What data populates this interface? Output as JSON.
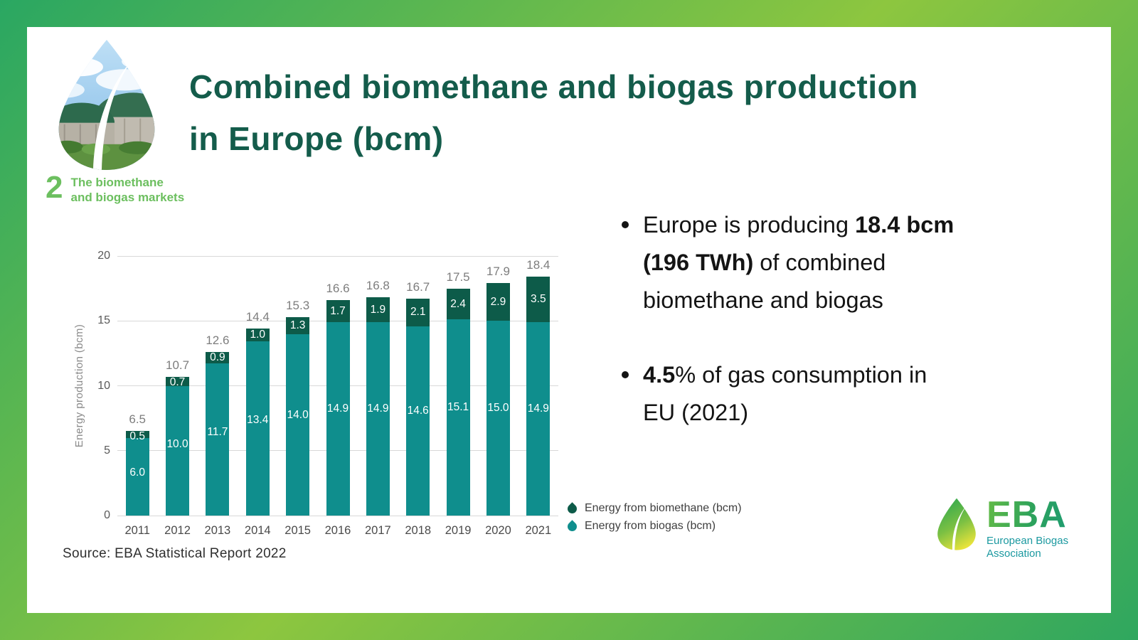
{
  "title": {
    "line1": "Combined biomethane and biogas production",
    "line2": "in Europe (bcm)"
  },
  "section": {
    "number": "2",
    "label_line1": "The biomethane",
    "label_line2": "and biogas markets"
  },
  "bullets": [
    {
      "lines": [
        [
          {
            "text": "Europe is producing ",
            "bold": false
          },
          {
            "text": "18.4 bcm",
            "bold": true
          }
        ],
        [
          {
            "text": "(196 TWh)",
            "bold": true
          },
          {
            "text": " of combined",
            "bold": false
          }
        ],
        [
          {
            "text": "biomethane and biogas",
            "bold": false
          }
        ]
      ]
    },
    {
      "lines": [
        [
          {
            "text": "4.5",
            "bold": true
          },
          {
            "text": "% of gas consumption in",
            "bold": false
          }
        ],
        [
          {
            "text": "EU (2021)",
            "bold": false
          }
        ]
      ]
    }
  ],
  "source": "Source: EBA Statistical Report 2022",
  "eba_logo": {
    "acronym": "EBA",
    "sub_line1": "European Biogas",
    "sub_line2": "Association"
  },
  "colors": {
    "border_gradient": [
      "#2aa762",
      "#8dc63f",
      "#2fa75f"
    ],
    "title_green": "#145c4b",
    "section_green": "#6cbf5f",
    "biomethane": "#0d5b49",
    "biogas": "#0f8e8d",
    "total_label": "#7d7d7d",
    "eba_teal": "#1b99a0"
  },
  "chart_data": {
    "type": "bar",
    "stacked": true,
    "title": "Combined biomethane and biogas production in Europe (bcm)",
    "categories": [
      "2011",
      "2012",
      "2013",
      "2014",
      "2015",
      "2016",
      "2017",
      "2018",
      "2019",
      "2020",
      "2021"
    ],
    "series": [
      {
        "name": "Energy from biomethane (bcm)",
        "color": "#0d5b49",
        "values": [
          0.5,
          0.7,
          0.9,
          1.0,
          1.3,
          1.7,
          1.9,
          2.1,
          2.4,
          2.9,
          3.5
        ]
      },
      {
        "name": "Energy from biogas (bcm)",
        "color": "#0f8e8d",
        "values": [
          6.0,
          10.0,
          11.7,
          13.4,
          14.0,
          14.9,
          14.9,
          14.6,
          15.1,
          15.0,
          14.9
        ]
      }
    ],
    "totals": [
      6.5,
      10.7,
      12.6,
      14.4,
      15.3,
      16.6,
      16.8,
      16.7,
      17.5,
      17.9,
      18.4
    ],
    "xlabel": "",
    "ylabel": "Energy production (bcm)",
    "yticks": [
      0,
      5,
      10,
      15,
      20
    ],
    "ylim": [
      0,
      20
    ],
    "grid": true,
    "legend_position": "bottom-right"
  }
}
